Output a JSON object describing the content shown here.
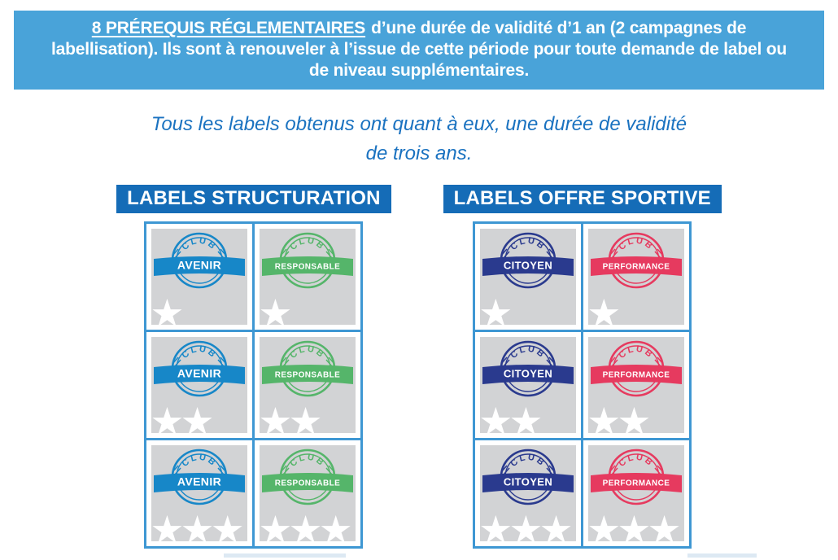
{
  "banner": {
    "highlight": "8 PRÉREQUIS RÉGLEMENTAIRES",
    "rest": "d’une durée de validité d’1 an (2 campagnes de labellisation). Ils sont à renouveler à l’issue de cette période pour toute demande de label ou de niveau supplémentaires.",
    "bg_color": "#49a3d9",
    "text_color": "#ffffff"
  },
  "subtitle": {
    "text": "Tous les labels obtenus ont quant à eux, une durée de validité de trois ans.",
    "color": "#1a72c0"
  },
  "badge_top_text": "CLUB",
  "star_levels": [
    1,
    2,
    3
  ],
  "colors": {
    "header_bg": "#156cb7",
    "header_text": "#ffffff",
    "grid_border": "#3e97d3",
    "cell_bg": "#d2d3d5",
    "star": "#ffffff"
  },
  "sections": [
    {
      "title": "LABELS STRUCTURATION",
      "columns": [
        {
          "label": "AVENIR",
          "color": "#1787c8"
        },
        {
          "label": "RESPONSABLE",
          "color": "#55b56a"
        }
      ]
    },
    {
      "title": "LABELS OFFRE SPORTIVE",
      "columns": [
        {
          "label": "CITOYEN",
          "color": "#2a3a8e"
        },
        {
          "label": "PERFORMANCE",
          "color": "#e63a5f"
        }
      ]
    }
  ]
}
